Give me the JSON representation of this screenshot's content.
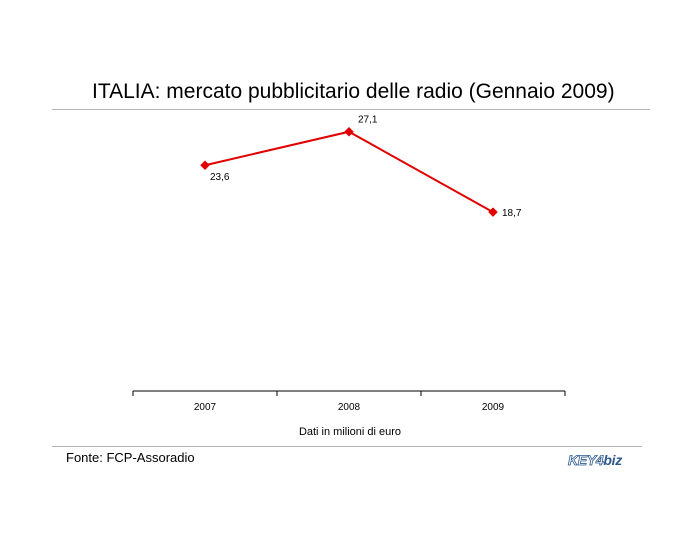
{
  "header": {
    "title": "ITALIA: mercato pubblicitario delle radio (Gennaio 2009)"
  },
  "footer": {
    "source": "Fonte: FCP-Assoradio",
    "logo_left": "KEY4",
    "logo_right": "biz"
  },
  "colors": {
    "series": "#e00000",
    "axis": "#000000",
    "rule": "#b4b4b4",
    "brand": "#2f5b8f"
  },
  "chart_data": {
    "type": "line",
    "title": "ITALIA: mercato pubblicitario delle radio (Gennaio 2009)",
    "xlabel": "Dati in milioni di euro",
    "ylabel": "",
    "categories": [
      "2007",
      "2008",
      "2009"
    ],
    "series": [
      {
        "values": [
          23.6,
          27.1,
          18.7
        ],
        "labels": [
          "23,6",
          "27,1",
          "18,7"
        ]
      }
    ],
    "ylim": [
      0,
      30
    ],
    "grid": false,
    "marker": "diamond"
  }
}
